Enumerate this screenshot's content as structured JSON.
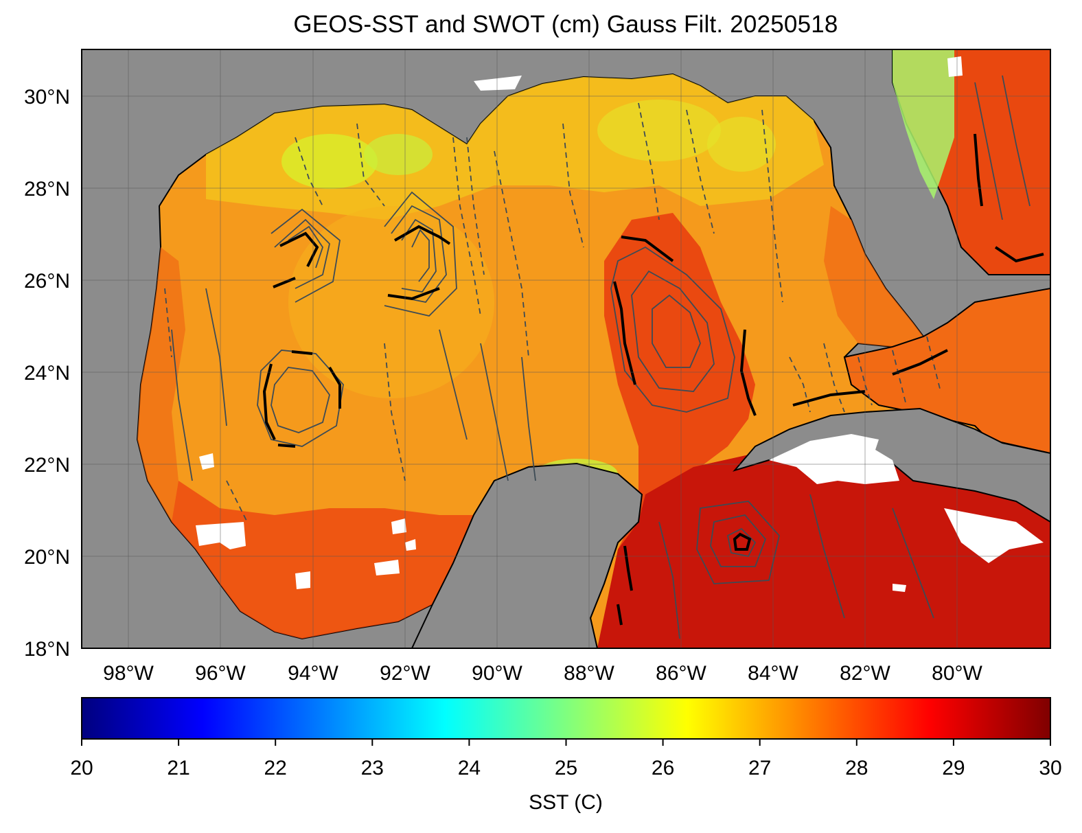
{
  "title": "GEOS-SST  and SWOT (cm) Gauss Filt. 20250518",
  "map": {
    "lon_range": [
      -99,
      -78
    ],
    "lat_range": [
      18,
      31
    ],
    "lat_ticks": [
      {
        "value": 18,
        "label": "18°N"
      },
      {
        "value": 20,
        "label": "20°N"
      },
      {
        "value": 22,
        "label": "22°N"
      },
      {
        "value": 24,
        "label": "24°N"
      },
      {
        "value": 26,
        "label": "26°N"
      },
      {
        "value": 28,
        "label": "28°N"
      },
      {
        "value": 30,
        "label": "30°N"
      }
    ],
    "lon_ticks": [
      {
        "value": -98,
        "label": "98°W"
      },
      {
        "value": -96,
        "label": "96°W"
      },
      {
        "value": -94,
        "label": "94°W"
      },
      {
        "value": -92,
        "label": "92°W"
      },
      {
        "value": -90,
        "label": "90°W"
      },
      {
        "value": -88,
        "label": "88°W"
      },
      {
        "value": -86,
        "label": "86°W"
      },
      {
        "value": -84,
        "label": "84°W"
      },
      {
        "value": -82,
        "label": "82°W"
      },
      {
        "value": -80,
        "label": "80°W"
      }
    ],
    "land_color": "#8c8c8c",
    "grid": true
  },
  "colorbar": {
    "label": "SST (C)",
    "min": 20,
    "max": 30,
    "ticks": [
      "20",
      "21",
      "22",
      "23",
      "24",
      "25",
      "26",
      "27",
      "28",
      "29",
      "30"
    ],
    "colormap": "jet",
    "colors": [
      "#00007f",
      "#0000ff",
      "#007fff",
      "#00ffff",
      "#7fff7f",
      "#ffff00",
      "#ff7f00",
      "#ff0000",
      "#7f0000"
    ]
  }
}
